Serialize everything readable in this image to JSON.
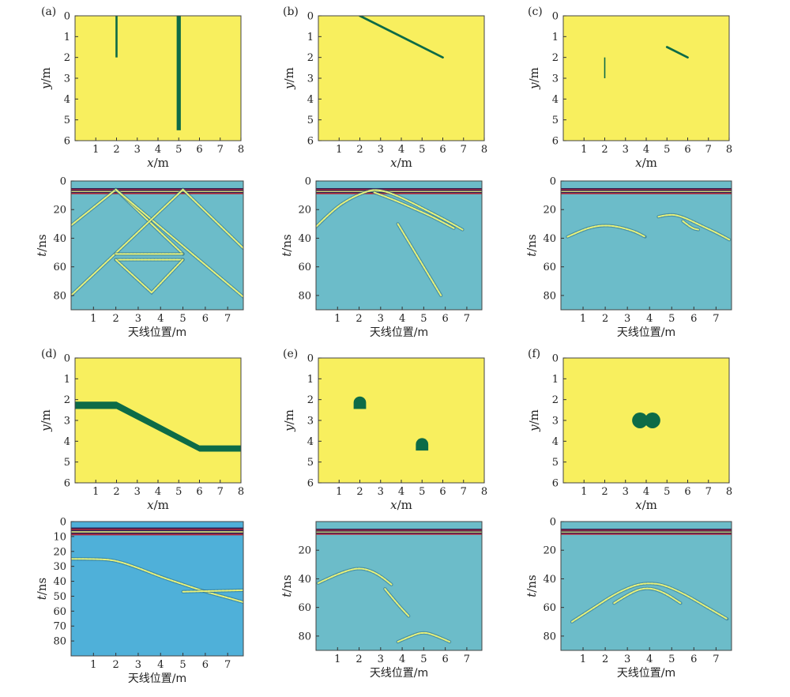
{
  "colors": {
    "model_background": "#f8ef5e",
    "target": "#0d6b47",
    "radargram_background": "#6cbcc9",
    "radargram_background_d": "#4fb0d9",
    "direct_wave_dark": "#2a1f55",
    "direct_wave_red": "#b22a3a",
    "hyperbola_light": "#e8f27a",
    "hyperbola_dark": "#2c6c83"
  },
  "chart_data": [
    {
      "panel": "(a)",
      "type": "heatmap",
      "kind": "model",
      "xlabel": "x/m",
      "ylabel": "y/m",
      "xlim": [
        0,
        8
      ],
      "ylim": [
        6,
        0
      ],
      "xticks": [
        1,
        2,
        3,
        4,
        5,
        6,
        7,
        8
      ],
      "yticks": [
        0,
        1,
        2,
        3,
        4,
        5,
        6
      ],
      "targets": [
        {
          "shape": "rect",
          "x0": 1.95,
          "x1": 2.05,
          "y0": 0.0,
          "y1": 2.0
        },
        {
          "shape": "rect",
          "x0": 4.9,
          "x1": 5.1,
          "y0": 0.0,
          "y1": 5.5
        }
      ]
    },
    {
      "panel": "(a)",
      "type": "heatmap",
      "kind": "radargram",
      "xlabel": "天线位置/m",
      "ylabel": "t/ns",
      "xlim": [
        0,
        7.7
      ],
      "ylim": [
        90,
        0
      ],
      "xticks": [
        1,
        2,
        3,
        4,
        5,
        6,
        7
      ],
      "yticks": [
        0,
        20,
        40,
        60,
        80
      ],
      "direct_wave": [
        5,
        9
      ],
      "events": [
        {
          "kind": "line",
          "pts": [
            [
              0,
              31
            ],
            [
              2,
              6
            ],
            [
              5,
              51
            ]
          ]
        },
        {
          "kind": "line",
          "pts": [
            [
              2,
              6
            ],
            [
              7.7,
              81
            ]
          ]
        },
        {
          "kind": "line",
          "pts": [
            [
              0,
              80
            ],
            [
              5,
              6
            ],
            [
              7.7,
              47
            ]
          ]
        },
        {
          "kind": "line",
          "pts": [
            [
              2,
              51
            ],
            [
              5,
              51
            ]
          ]
        },
        {
          "kind": "line",
          "pts": [
            [
              2,
              55
            ],
            [
              5,
              55
            ]
          ]
        },
        {
          "kind": "line",
          "pts": [
            [
              2,
              55
            ],
            [
              3.6,
              78
            ],
            [
              5,
              55
            ]
          ]
        }
      ]
    },
    {
      "panel": "(b)",
      "type": "heatmap",
      "kind": "model",
      "xlabel": "x/m",
      "ylabel": "y/m",
      "xlim": [
        0,
        8
      ],
      "ylim": [
        6,
        0
      ],
      "xticks": [
        1,
        2,
        3,
        4,
        5,
        6,
        7,
        8
      ],
      "yticks": [
        0,
        1,
        2,
        3,
        4,
        5,
        6
      ],
      "targets": [
        {
          "shape": "line",
          "pts": [
            [
              2,
              0
            ],
            [
              6,
              2
            ]
          ],
          "w": 0.08
        }
      ]
    },
    {
      "panel": "(b)",
      "type": "heatmap",
      "kind": "radargram",
      "xlabel": "天线位置/m",
      "ylabel": "t/ns",
      "xlim": [
        0,
        7.7
      ],
      "ylim": [
        90,
        0
      ],
      "xticks": [
        1,
        2,
        3,
        4,
        5,
        6,
        7
      ],
      "yticks": [
        0,
        20,
        40,
        60,
        80
      ],
      "direct_wave": [
        5,
        9
      ],
      "events": [
        {
          "kind": "curve",
          "pts": [
            [
              0,
              32
            ],
            [
              0.8,
              20
            ],
            [
              1.6,
              12
            ],
            [
              2.4,
              7
            ],
            [
              2.8,
              6
            ],
            [
              3.4,
              8
            ],
            [
              4.3,
              14
            ],
            [
              5.2,
              21
            ],
            [
              6.1,
              28
            ],
            [
              6.8,
              34
            ]
          ]
        },
        {
          "kind": "curve",
          "pts": [
            [
              2.7,
              8
            ],
            [
              3.6,
              13
            ],
            [
              4.5,
              19
            ],
            [
              5.4,
              25
            ],
            [
              6.4,
              33
            ]
          ]
        },
        {
          "kind": "line",
          "pts": [
            [
              3.8,
              30
            ],
            [
              5.8,
              80
            ]
          ]
        }
      ]
    },
    {
      "panel": "(c)",
      "type": "heatmap",
      "kind": "model",
      "xlabel": "x/m",
      "ylabel": "y/m",
      "xlim": [
        0,
        8
      ],
      "ylim": [
        6,
        0
      ],
      "xticks": [
        1,
        2,
        3,
        4,
        5,
        6,
        7,
        8
      ],
      "yticks": [
        0,
        1,
        2,
        3,
        4,
        5,
        6
      ],
      "targets": [
        {
          "shape": "rect",
          "x0": 1.97,
          "x1": 2.03,
          "y0": 2.0,
          "y1": 3.0
        },
        {
          "shape": "line",
          "pts": [
            [
              5,
              1.5
            ],
            [
              6,
              2
            ]
          ],
          "w": 0.08
        }
      ]
    },
    {
      "panel": "(c)",
      "type": "heatmap",
      "kind": "radargram",
      "xlabel": "天线位置/m",
      "ylabel": "t/ns",
      "xlim": [
        0,
        7.7
      ],
      "ylim": [
        90,
        0
      ],
      "xticks": [
        1,
        2,
        3,
        4,
        5,
        6,
        7
      ],
      "yticks": [
        0,
        20,
        40,
        60,
        80
      ],
      "direct_wave": [
        5,
        9
      ],
      "events": [
        {
          "kind": "curve",
          "pts": [
            [
              0.3,
              39
            ],
            [
              1,
              34
            ],
            [
              1.6,
              31.5
            ],
            [
              2.1,
              31
            ],
            [
              2.6,
              32
            ],
            [
              3.3,
              35
            ],
            [
              3.8,
              39
            ]
          ]
        },
        {
          "kind": "curve",
          "pts": [
            [
              4.4,
              25
            ],
            [
              4.9,
              23
            ],
            [
              5.5,
              25
            ],
            [
              6.3,
              31
            ],
            [
              7,
              36
            ],
            [
              7.6,
              41
            ]
          ]
        },
        {
          "kind": "curve",
          "pts": [
            [
              5.5,
              28
            ],
            [
              5.9,
              33
            ],
            [
              6.2,
              34
            ]
          ]
        }
      ]
    },
    {
      "panel": "(d)",
      "type": "heatmap",
      "kind": "model",
      "xlabel": "x/m",
      "ylabel": "y/m",
      "xlim": [
        0,
        8
      ],
      "ylim": [
        6,
        0
      ],
      "xticks": [
        1,
        2,
        3,
        4,
        5,
        6,
        7,
        8
      ],
      "yticks": [
        0,
        1,
        2,
        3,
        4,
        5,
        6
      ],
      "targets": [
        {
          "shape": "polygon",
          "pts": [
            [
              0,
              2.1
            ],
            [
              2,
              2.1
            ],
            [
              6,
              4.2
            ],
            [
              8,
              4.2
            ],
            [
              8,
              4.5
            ],
            [
              6,
              4.5
            ],
            [
              2,
              2.45
            ],
            [
              0,
              2.45
            ]
          ]
        }
      ]
    },
    {
      "panel": "(d)",
      "type": "heatmap",
      "kind": "radargram",
      "xlabel": "天线位置/m",
      "ylabel": "t/ns",
      "xlim": [
        0,
        7.7
      ],
      "ylim": [
        90,
        0
      ],
      "xticks": [
        1,
        2,
        3,
        4,
        5,
        6,
        7
      ],
      "yticks": [
        0,
        10,
        20,
        30,
        40,
        50,
        60,
        70,
        80
      ],
      "direct_wave": [
        4,
        9
      ],
      "events": [
        {
          "kind": "curve",
          "pts": [
            [
              0,
              25
            ],
            [
              1.2,
              25
            ],
            [
              2,
              26
            ],
            [
              3,
              31
            ],
            [
              4,
              37
            ],
            [
              5,
              42
            ],
            [
              6,
              47
            ],
            [
              7,
              51
            ],
            [
              7.7,
              54
            ]
          ]
        },
        {
          "kind": "line",
          "pts": [
            [
              5,
              47
            ],
            [
              7.7,
              46
            ]
          ]
        }
      ]
    },
    {
      "panel": "(e)",
      "type": "heatmap",
      "kind": "model",
      "xlabel": "x/m",
      "ylabel": "y/m",
      "xlim": [
        0,
        8
      ],
      "ylim": [
        6,
        0
      ],
      "xticks": [
        1,
        2,
        3,
        4,
        5,
        6,
        7,
        8
      ],
      "yticks": [
        0,
        1,
        2,
        3,
        4,
        5,
        6
      ],
      "targets": [
        {
          "shape": "arch",
          "cx": 2,
          "top": 1.85,
          "r": 0.3,
          "bottom": 2.45
        },
        {
          "shape": "arch",
          "cx": 5,
          "top": 3.85,
          "r": 0.3,
          "bottom": 4.45
        }
      ]
    },
    {
      "panel": "(e)",
      "type": "heatmap",
      "kind": "radargram",
      "xlabel": "天线位置/m",
      "ylabel": "t/ns",
      "xlim": [
        0,
        7.7
      ],
      "ylim": [
        90,
        0
      ],
      "xticks": [
        1,
        2,
        3,
        4,
        5,
        6,
        7
      ],
      "yticks": [
        20,
        40,
        60,
        80
      ],
      "direct_wave": [
        5,
        9
      ],
      "events": [
        {
          "kind": "curve",
          "pts": [
            [
              0.1,
              43
            ],
            [
              0.8,
              38
            ],
            [
              1.5,
              34
            ],
            [
              2,
              32.5
            ],
            [
              2.5,
              34
            ],
            [
              3,
              38
            ],
            [
              3.5,
              44
            ]
          ]
        },
        {
          "kind": "curve",
          "pts": [
            [
              3.2,
              47
            ],
            [
              3.8,
              58
            ],
            [
              4.3,
              66
            ]
          ]
        },
        {
          "kind": "curve",
          "pts": [
            [
              3.8,
              84
            ],
            [
              4.4,
              80
            ],
            [
              5,
              77
            ],
            [
              5.6,
              80
            ],
            [
              6.2,
              84
            ]
          ]
        }
      ]
    },
    {
      "panel": "(f)",
      "type": "heatmap",
      "kind": "model",
      "xlabel": "x/m",
      "ylabel": "y/m",
      "xlim": [
        0,
        8
      ],
      "ylim": [
        6,
        0
      ],
      "xticks": [
        1,
        2,
        3,
        4,
        5,
        6,
        7,
        8
      ],
      "yticks": [
        0,
        1,
        2,
        3,
        4,
        5,
        6
      ],
      "targets": [
        {
          "shape": "circle",
          "cx": 3.7,
          "cy": 3.0,
          "r": 0.38
        },
        {
          "shape": "circle",
          "cx": 4.3,
          "cy": 3.0,
          "r": 0.38
        }
      ]
    },
    {
      "panel": "(f)",
      "type": "heatmap",
      "kind": "radargram",
      "xlabel": "天线位置/m",
      "ylabel": "t/ns",
      "xlim": [
        0,
        7.7
      ],
      "ylim": [
        90,
        0
      ],
      "xticks": [
        1,
        2,
        3,
        4,
        5,
        6,
        7
      ],
      "yticks": [
        0,
        20,
        40,
        60,
        80
      ],
      "direct_wave": [
        5,
        9
      ],
      "events": [
        {
          "kind": "curve",
          "pts": [
            [
              0.5,
              70
            ],
            [
              1.5,
              60
            ],
            [
              2.5,
              50
            ],
            [
              3.4,
              44
            ],
            [
              4,
              43
            ],
            [
              4.6,
              44
            ],
            [
              5.5,
              50
            ],
            [
              6.5,
              59
            ],
            [
              7.5,
              68
            ]
          ]
        },
        {
          "kind": "curve",
          "pts": [
            [
              2.4,
              57
            ],
            [
              3.2,
              49
            ],
            [
              3.9,
              46
            ],
            [
              4.6,
              49
            ],
            [
              5.4,
              57
            ]
          ]
        }
      ]
    }
  ]
}
